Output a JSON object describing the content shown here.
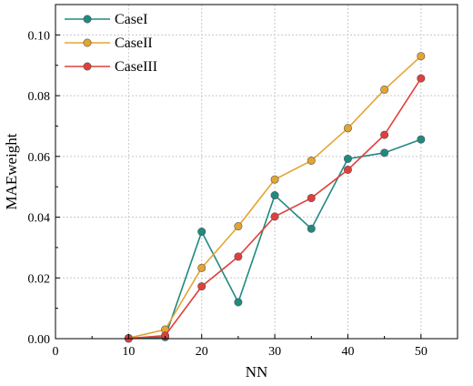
{
  "chart_data": {
    "type": "line",
    "xlabel": "NN",
    "ylabel": "MAEweight",
    "xlim": [
      0,
      55
    ],
    "ylim": [
      0,
      0.11
    ],
    "x_ticks": [
      "0",
      "10",
      "20",
      "30",
      "40",
      "50"
    ],
    "y_ticks": [
      "0.00",
      "0.02",
      "0.04",
      "0.06",
      "0.08",
      "0.10"
    ],
    "grid": true,
    "legend_position": "top-left",
    "x": [
      10,
      15,
      20,
      25,
      30,
      35,
      40,
      45,
      50
    ],
    "series": [
      {
        "name": "CaseI",
        "color": "#1f8a80",
        "values": [
          0.0,
          0.0005,
          0.0352,
          0.012,
          0.0472,
          0.0362,
          0.0592,
          0.0612,
          0.0656
        ]
      },
      {
        "name": "CaseII",
        "color": "#e3a532",
        "values": [
          0.0002,
          0.003,
          0.0233,
          0.037,
          0.0524,
          0.0586,
          0.0693,
          0.082,
          0.093
        ]
      },
      {
        "name": "CaseIII",
        "color": "#e0403c",
        "values": [
          0.0001,
          0.001,
          0.0172,
          0.027,
          0.0402,
          0.0463,
          0.0556,
          0.0671,
          0.0857
        ]
      }
    ]
  }
}
